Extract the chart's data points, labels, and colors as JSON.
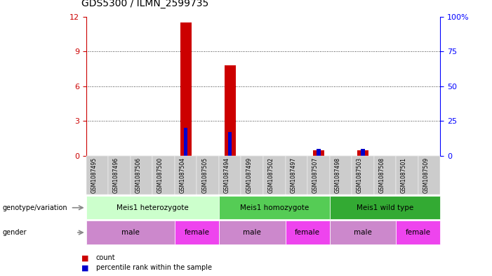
{
  "title": "GDS5300 / ILMN_2599735",
  "samples": [
    "GSM1087495",
    "GSM1087496",
    "GSM1087506",
    "GSM1087500",
    "GSM1087504",
    "GSM1087505",
    "GSM1087494",
    "GSM1087499",
    "GSM1087502",
    "GSM1087497",
    "GSM1087507",
    "GSM1087498",
    "GSM1087503",
    "GSM1087508",
    "GSM1087501",
    "GSM1087509"
  ],
  "count_values": [
    0,
    0,
    0,
    0,
    11.5,
    0,
    7.8,
    0,
    0,
    0,
    0.5,
    0,
    0.5,
    0,
    0,
    0
  ],
  "percentile_values": [
    0,
    0,
    0,
    0,
    20,
    0,
    17,
    0,
    0,
    0,
    5,
    0,
    5,
    0,
    0,
    0
  ],
  "count_color": "#cc0000",
  "percentile_color": "#0000cc",
  "ylim_left": [
    0,
    12
  ],
  "ylim_right": [
    0,
    100
  ],
  "yticks_left": [
    0,
    3,
    6,
    9,
    12
  ],
  "ytick_labels_left": [
    "0",
    "3",
    "6",
    "9",
    "12"
  ],
  "yticks_right": [
    0,
    25,
    50,
    75,
    100
  ],
  "ytick_labels_right": [
    "0",
    "25",
    "50",
    "75",
    "100%"
  ],
  "genotype_groups": [
    {
      "label": "Meis1 heterozygote",
      "start": 0,
      "end": 6,
      "color": "#ccffcc"
    },
    {
      "label": "Meis1 homozygote",
      "start": 6,
      "end": 11,
      "color": "#55cc55"
    },
    {
      "label": "Meis1 wild type",
      "start": 11,
      "end": 16,
      "color": "#33aa33"
    }
  ],
  "gender_groups": [
    {
      "label": "male",
      "start": 0,
      "end": 4,
      "color": "#dd99dd"
    },
    {
      "label": "female",
      "start": 4,
      "end": 6,
      "color": "#ee44ee"
    },
    {
      "label": "male",
      "start": 6,
      "end": 9,
      "color": "#dd99dd"
    },
    {
      "label": "female",
      "start": 9,
      "end": 11,
      "color": "#ee44ee"
    },
    {
      "label": "male",
      "start": 11,
      "end": 14,
      "color": "#dd99dd"
    },
    {
      "label": "female",
      "start": 14,
      "end": 16,
      "color": "#ee44ee"
    }
  ],
  "bar_width": 0.5,
  "bg_color": "#ffffff",
  "grid_color": "#000000",
  "sample_bg_color": "#cccccc"
}
